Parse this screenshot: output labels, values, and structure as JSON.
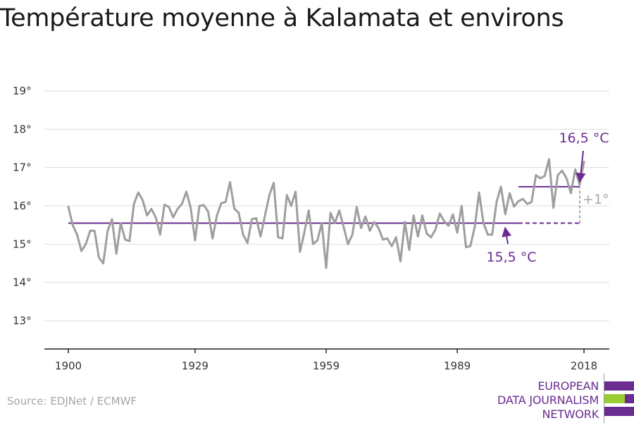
{
  "header": {
    "title": "Température moyenne à Kalamata et environs"
  },
  "footer": {
    "source": "Source: EDJNet / ECMWF"
  },
  "logo": {
    "lines": [
      "EUROPEAN",
      "DATA JOURNALISM",
      "NETWORK"
    ],
    "colors": {
      "purple": "#6a2c91",
      "green": "#9acd32"
    }
  },
  "colors": {
    "series": "#9e9e9e",
    "baseline": "#6a2c91",
    "delta": "#a6a6a6",
    "grid": "#dddddd",
    "axis": "#222222",
    "tick_text": "#333333"
  },
  "chart_data": {
    "type": "line",
    "title": "Température moyenne à Kalamata et environs",
    "xlabel": "",
    "ylabel": "",
    "xlim": [
      1900,
      2018
    ],
    "ylim": [
      13,
      19
    ],
    "x_ticks": [
      1900,
      1929,
      1959,
      1989,
      2018
    ],
    "y_ticks": [
      13,
      14,
      15,
      16,
      17,
      18,
      19
    ],
    "y_tick_labels": [
      "13°",
      "14°",
      "15°",
      "16°",
      "17°",
      "18°",
      "19°"
    ],
    "grid": true,
    "series": [
      {
        "x": [
          1900,
          1901,
          1902,
          1903,
          1904,
          1905,
          1906,
          1907,
          1908,
          1909,
          1910,
          1911,
          1912,
          1913,
          1914,
          1915,
          1916,
          1917,
          1918,
          1919,
          1920,
          1921,
          1922,
          1923,
          1924,
          1925,
          1926,
          1927,
          1928,
          1929,
          1930,
          1931,
          1932,
          1933,
          1934,
          1935,
          1936,
          1937,
          1938,
          1939,
          1940,
          1941,
          1942,
          1943,
          1944,
          1945,
          1946,
          1947,
          1948,
          1949,
          1950,
          1951,
          1952,
          1953,
          1954,
          1955,
          1956,
          1957,
          1958,
          1959,
          1960,
          1961,
          1962,
          1963,
          1964,
          1965,
          1966,
          1967,
          1968,
          1969,
          1970,
          1971,
          1972,
          1973,
          1974,
          1975,
          1976,
          1977,
          1978,
          1979,
          1980,
          1981,
          1982,
          1983,
          1984,
          1985,
          1986,
          1987,
          1988,
          1989,
          1990,
          1991,
          1992,
          1993,
          1994,
          1995,
          1996,
          1997,
          1998,
          1999,
          2000,
          2001,
          2002,
          2003,
          2004,
          2005,
          2006,
          2007,
          2008,
          2009,
          2010,
          2011,
          2012,
          2013,
          2014,
          2015,
          2016,
          2017,
          2018
        ],
        "values": [
          15.98,
          15.5,
          15.25,
          14.82,
          15.0,
          15.35,
          15.35,
          14.65,
          14.5,
          15.35,
          15.65,
          14.75,
          15.55,
          15.12,
          15.08,
          16.05,
          16.35,
          16.15,
          15.75,
          15.92,
          15.7,
          15.25,
          16.03,
          15.97,
          15.7,
          15.92,
          16.05,
          16.37,
          15.95,
          15.1,
          16.0,
          16.02,
          15.85,
          15.15,
          15.75,
          16.07,
          16.1,
          16.62,
          15.92,
          15.82,
          15.25,
          15.03,
          15.65,
          15.68,
          15.2,
          15.75,
          16.28,
          16.6,
          15.18,
          15.15,
          16.28,
          16.0,
          16.37,
          14.8,
          15.3,
          15.88,
          15.0,
          15.1,
          15.55,
          14.38,
          15.82,
          15.55,
          15.88,
          15.45,
          15.0,
          15.25,
          15.97,
          15.42,
          15.72,
          15.35,
          15.58,
          15.42,
          15.12,
          15.15,
          14.95,
          15.18,
          14.55,
          15.58,
          14.85,
          15.75,
          15.2,
          15.75,
          15.28,
          15.18,
          15.38,
          15.8,
          15.6,
          15.48,
          15.78,
          15.3,
          16.0,
          14.92,
          14.95,
          15.45,
          16.35,
          15.55,
          15.25,
          15.25,
          16.1,
          16.5,
          15.78,
          16.33,
          15.98,
          16.12,
          16.18,
          16.05,
          16.1,
          16.8,
          16.72,
          16.78,
          17.22,
          15.95,
          16.8,
          16.92,
          16.72,
          16.33,
          16.95,
          16.55,
          17.15
        ]
      }
    ],
    "annotations": [
      {
        "label": "15,5 °C",
        "y": 15.55,
        "x_from": 1900,
        "x_to": 2018,
        "solid_to": 2003,
        "dashed_from": 2003
      },
      {
        "label": "16,5 °C",
        "y": 16.5,
        "x_from": 2003,
        "x_to": 2018
      },
      {
        "label": "+1°",
        "from": 15.55,
        "to": 16.5,
        "x": 2018
      }
    ]
  }
}
